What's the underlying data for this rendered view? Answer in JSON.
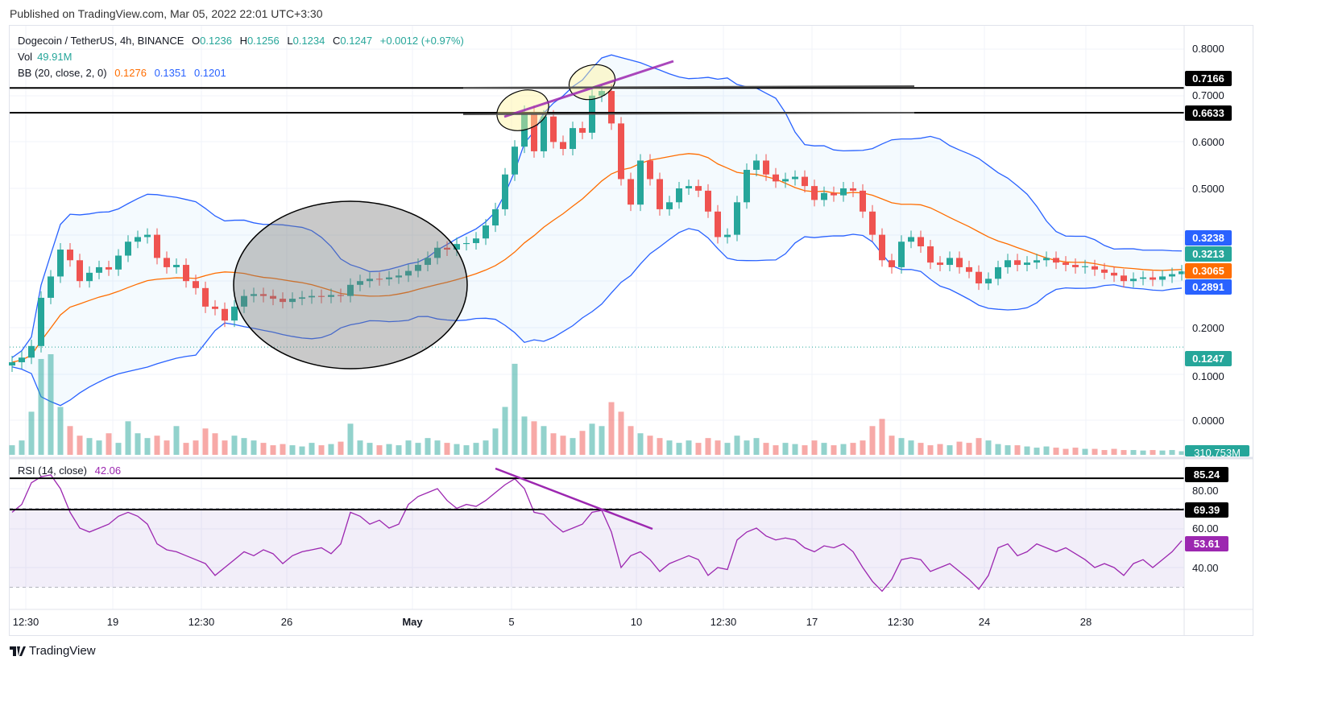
{
  "published": "Published on TradingView.com, Mar 05, 2022 22:01 UTC+3:30",
  "legend": {
    "symbol": "Dogecoin / TetherUS, 4h, BINANCE",
    "o_label": "O",
    "o": "0.1236",
    "h_label": "H",
    "h": "0.1256",
    "l_label": "L",
    "l": "0.1234",
    "c_label": "C",
    "c": "0.1247",
    "change": "+0.0012 (+0.97%)",
    "vol_label": "Vol",
    "vol": "49.91M",
    "bb_label": "BB (20, close, 2, 0)",
    "bb_basis": "0.1276",
    "bb_upper": "0.1351",
    "bb_lower": "0.1201",
    "rsi_label": "RSI (14, close)",
    "rsi": "42.06"
  },
  "price_axis": [
    "0.8000",
    "0.7000",
    "0.6000",
    "0.5000",
    "0.2000",
    "0.1000",
    "0.0000"
  ],
  "rsi_axis": [
    "80.00",
    "60.00",
    "40.00"
  ],
  "price_labels": {
    "level_high": "0.7166",
    "level_low": "0.6633",
    "bb_upper": "0.3238",
    "last": "0.3213",
    "bb_basis": "0.3065",
    "bb_lower": "0.2891",
    "close": "0.1247",
    "volume": "310.753M",
    "rsi_high": "85.24",
    "rsi_mid": "69.39",
    "rsi_last": "53.61"
  },
  "time_axis": [
    "12:30",
    "19",
    "12:30",
    "26",
    "May",
    "5",
    "10",
    "12:30",
    "17",
    "12:30",
    "24",
    "28"
  ],
  "footer": {
    "logo": "TradingView"
  },
  "colors": {
    "up": "#26a69a",
    "down": "#ef5350",
    "bb_basis": "#ff6d00",
    "bb_band": "#2962ff",
    "rsi": "#9c27b0",
    "trendline": "#9c27b0"
  },
  "chart_data": {
    "type": "candlestick",
    "price_ylim": [
      0,
      0.8
    ],
    "rsi_ylim": [
      20,
      95
    ],
    "horizontal_levels": [
      0.7166,
      0.6633
    ],
    "rsi_levels": [
      85.24,
      69.39
    ],
    "bb_period": 20,
    "bb_mult": 2,
    "grid": true,
    "closes": [
      0.125,
      0.135,
      0.16,
      0.264,
      0.31,
      0.368,
      0.345,
      0.3,
      0.318,
      0.33,
      0.325,
      0.355,
      0.385,
      0.395,
      0.4,
      0.35,
      0.33,
      0.335,
      0.3,
      0.285,
      0.245,
      0.24,
      0.215,
      0.245,
      0.268,
      0.272,
      0.268,
      0.262,
      0.255,
      0.262,
      0.265,
      0.268,
      0.266,
      0.27,
      0.268,
      0.292,
      0.3,
      0.305,
      0.304,
      0.308,
      0.312,
      0.322,
      0.335,
      0.35,
      0.372,
      0.368,
      0.38,
      0.382,
      0.392,
      0.42,
      0.455,
      0.53,
      0.59,
      0.665,
      0.58,
      0.655,
      0.6,
      0.585,
      0.63,
      0.62,
      0.7,
      0.71,
      0.64,
      0.52,
      0.465,
      0.56,
      0.52,
      0.455,
      0.47,
      0.5,
      0.505,
      0.495,
      0.45,
      0.395,
      0.4,
      0.47,
      0.54,
      0.56,
      0.53,
      0.515,
      0.52,
      0.525,
      0.505,
      0.475,
      0.49,
      0.485,
      0.5,
      0.495,
      0.45,
      0.4,
      0.345,
      0.33,
      0.385,
      0.395,
      0.375,
      0.34,
      0.335,
      0.35,
      0.33,
      0.32,
      0.295,
      0.305,
      0.33,
      0.345,
      0.335,
      0.34,
      0.345,
      0.35,
      0.34,
      0.335,
      0.33,
      0.332,
      0.325,
      0.318,
      0.312,
      0.3,
      0.305,
      0.308,
      0.303,
      0.31,
      0.315,
      0.321
    ],
    "first_open": 0.118,
    "volume_m": [
      40,
      60,
      180,
      400,
      420,
      200,
      120,
      80,
      70,
      60,
      90,
      50,
      140,
      90,
      70,
      80,
      60,
      120,
      50,
      60,
      110,
      90,
      60,
      80,
      70,
      60,
      50,
      40,
      45,
      40,
      35,
      50,
      40,
      45,
      55,
      130,
      60,
      50,
      40,
      45,
      40,
      60,
      50,
      70,
      60,
      50,
      45,
      40,
      50,
      60,
      110,
      200,
      380,
      160,
      140,
      120,
      90,
      80,
      70,
      100,
      130,
      120,
      220,
      180,
      120,
      90,
      80,
      70,
      60,
      50,
      60,
      50,
      70,
      60,
      50,
      80,
      60,
      70,
      50,
      40,
      50,
      45,
      40,
      60,
      50,
      40,
      45,
      50,
      60,
      120,
      150,
      80,
      70,
      60,
      50,
      40,
      45,
      40,
      55,
      50,
      70,
      60,
      45,
      40,
      40,
      35,
      30,
      35,
      30,
      25,
      30,
      25,
      25,
      20,
      25,
      20,
      20,
      18,
      20,
      18,
      20,
      15
    ],
    "rsi": [
      68,
      72,
      83,
      86,
      87,
      80,
      68,
      60,
      58,
      60,
      62,
      66,
      68,
      66,
      62,
      52,
      49,
      48,
      46,
      44,
      42,
      36,
      40,
      44,
      48,
      46,
      49,
      47,
      42,
      46,
      48,
      49,
      50,
      47,
      52,
      68,
      66,
      62,
      64,
      60,
      62,
      72,
      76,
      78,
      80,
      74,
      70,
      72,
      71,
      74,
      78,
      82,
      85,
      80,
      68,
      67,
      62,
      58,
      60,
      62,
      68,
      69,
      58,
      40,
      46,
      48,
      44,
      38,
      42,
      44,
      46,
      44,
      36,
      40,
      39,
      54,
      58,
      60,
      56,
      54,
      55,
      54,
      50,
      48,
      51,
      50,
      52,
      48,
      40,
      33,
      28,
      34,
      44,
      45,
      44,
      38,
      40,
      42,
      38,
      34,
      29,
      36,
      50,
      52,
      46,
      48,
      52,
      50,
      48,
      50,
      47,
      44,
      40,
      42,
      40,
      36,
      42,
      44,
      40,
      44,
      48,
      53.61
    ]
  }
}
